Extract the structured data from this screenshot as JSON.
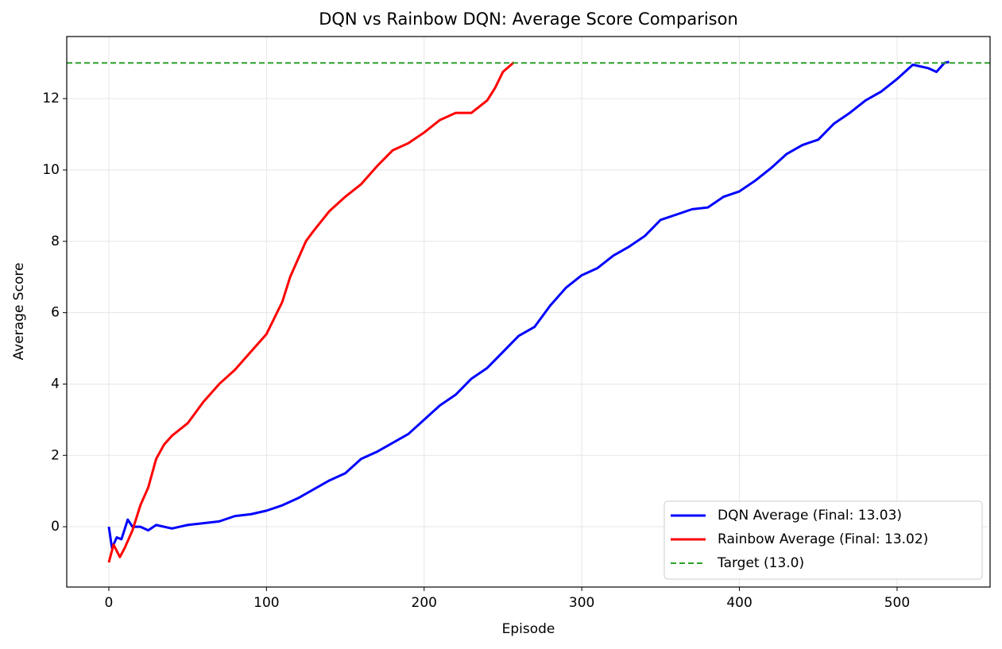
{
  "chart_data": {
    "type": "line",
    "title": "DQN vs Rainbow DQN: Average Score Comparison",
    "x_label": "Episode",
    "y_label": "Average Score",
    "xlim": [
      -26.7,
      559
    ],
    "ylim": [
      -1.69,
      13.74
    ],
    "xticks": [
      0,
      100,
      200,
      300,
      400,
      500
    ],
    "yticks": [
      0,
      2,
      4,
      6,
      8,
      10,
      12
    ],
    "grid": true,
    "legend": "lower right",
    "series": [
      {
        "name": "DQN Average (Final: 13.03)",
        "color": "#0000ff",
        "x": [
          0,
          2,
          5,
          8,
          12,
          15,
          20,
          25,
          30,
          40,
          45,
          50,
          60,
          70,
          80,
          90,
          100,
          110,
          120,
          130,
          140,
          150,
          160,
          170,
          180,
          190,
          200,
          210,
          220,
          230,
          240,
          250,
          260,
          270,
          280,
          290,
          300,
          310,
          320,
          330,
          340,
          350,
          360,
          370,
          380,
          390,
          400,
          410,
          420,
          430,
          440,
          450,
          460,
          470,
          480,
          490,
          500,
          510,
          520,
          525,
          530,
          533
        ],
        "values": [
          0.0,
          -0.6,
          -0.3,
          -0.35,
          0.2,
          0.0,
          0.0,
          -0.1,
          0.05,
          -0.05,
          0.0,
          0.05,
          0.1,
          0.15,
          0.3,
          0.35,
          0.45,
          0.6,
          0.8,
          1.05,
          1.3,
          1.5,
          1.9,
          2.1,
          2.35,
          2.6,
          3.0,
          3.4,
          3.7,
          4.15,
          4.45,
          4.9,
          5.35,
          5.6,
          6.2,
          6.7,
          7.05,
          7.25,
          7.6,
          7.85,
          8.15,
          8.6,
          8.75,
          8.9,
          8.95,
          9.25,
          9.4,
          9.7,
          10.05,
          10.45,
          10.7,
          10.85,
          11.3,
          11.6,
          11.95,
          12.2,
          12.55,
          12.95,
          12.85,
          12.75,
          13.0,
          13.03
        ]
      },
      {
        "name": "Rainbow Average (Final: 13.02)",
        "color": "#ff0000",
        "x": [
          0,
          3,
          7,
          10,
          15,
          20,
          25,
          30,
          35,
          40,
          50,
          60,
          70,
          80,
          90,
          100,
          110,
          115,
          120,
          125,
          130,
          140,
          150,
          160,
          170,
          180,
          190,
          200,
          210,
          220,
          230,
          240,
          245,
          250,
          257
        ],
        "values": [
          -1.0,
          -0.5,
          -0.85,
          -0.6,
          -0.1,
          0.6,
          1.1,
          1.9,
          2.3,
          2.55,
          2.9,
          3.5,
          4.0,
          4.4,
          4.9,
          5.4,
          6.3,
          7.0,
          7.5,
          8.0,
          8.3,
          8.85,
          9.25,
          9.6,
          10.1,
          10.55,
          10.75,
          11.05,
          11.4,
          11.6,
          11.6,
          11.95,
          12.3,
          12.75,
          13.02
        ]
      }
    ],
    "reference_line": {
      "name": "Target (13.0)",
      "value": 13.0,
      "color": "#2ca02c",
      "style": "dashed"
    }
  }
}
